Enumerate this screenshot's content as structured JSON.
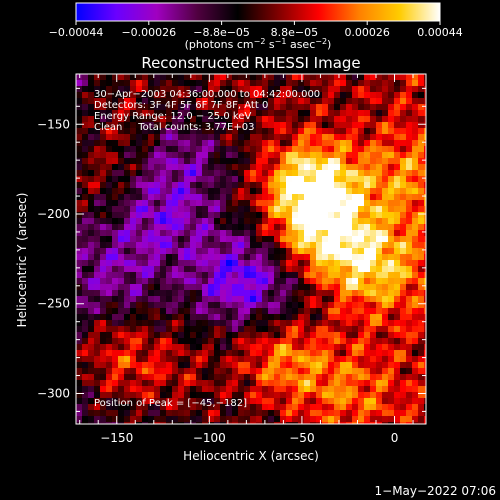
{
  "chart_data": {
    "type": "heatmap",
    "title": "Reconstructed RHESSI Image",
    "xlabel": "Heliocentric X (arcsec)",
    "ylabel": "Heliocentric Y (arcsec)",
    "xlim": [
      -172,
      17
    ],
    "ylim": [
      -317,
      -122
    ],
    "x_ticks": [
      -150,
      -100,
      -50,
      0
    ],
    "x_tick_labels": [
      "−150",
      "−100",
      "−50",
      "0"
    ],
    "y_ticks": [
      -150,
      -200,
      -250,
      -300
    ],
    "y_tick_labels": [
      "−150",
      "−200",
      "−250",
      "−300"
    ],
    "colorbar": {
      "range": [
        -0.00044,
        0.00044
      ],
      "tick_labels": [
        "−0.00044",
        "−0.00026",
        "−8.8e−05",
        "8.8e−05",
        "0.00026",
        "0.00044"
      ],
      "unit_parts": [
        "(photons cm",
        "−2",
        " s",
        "−1",
        " asec",
        "−2",
        ")"
      ],
      "colors": [
        "#0000ff",
        "#6a00ff",
        "#a000c0",
        "#500040",
        "#000000",
        "#800000",
        "#ff0000",
        "#ff8000",
        "#ffcc00",
        "#ffffff"
      ]
    },
    "info_lines": [
      "30−Apr−2003 04:36:00.000 to 04:42:00.000",
      "Detectors: 3F 4F 5F 6F 7F 8F, Att 0",
      "Energy Range: 12.0 − 25.0 keV",
      "Clean     Total counts: 3.77E+03"
    ],
    "peak_label": "Position of Peak = [−45,−182]",
    "peak": [
      -45,
      -182
    ],
    "features": [
      {
        "x": -45,
        "y": -185,
        "value": 0.00044
      },
      {
        "x": -38,
        "y": -215,
        "value": 0.0003
      },
      {
        "x": -10,
        "y": -230,
        "value": 0.00025
      },
      {
        "x": -60,
        "y": -280,
        "value": 0.00024
      },
      {
        "x": 5,
        "y": -180,
        "value": 0.00016
      },
      {
        "x": -150,
        "y": -280,
        "value": 0.00022
      },
      {
        "x": -160,
        "y": -180,
        "value": 0.00014
      },
      {
        "x": -120,
        "y": -290,
        "value": 0.0001
      },
      {
        "x": -145,
        "y": -140,
        "value": 0.00012
      },
      {
        "x": -95,
        "y": -140,
        "value": 9e-05
      },
      {
        "x": -25,
        "y": -300,
        "value": 0.00016
      },
      {
        "x": -85,
        "y": -235,
        "value": -0.00028
      },
      {
        "x": -125,
        "y": -200,
        "value": -0.0002
      },
      {
        "x": -110,
        "y": -165,
        "value": -0.00016
      },
      {
        "x": -60,
        "y": -245,
        "value": -0.00014
      },
      {
        "x": -150,
        "y": -235,
        "value": -0.00012
      }
    ]
  },
  "footer": {
    "timestamp": "1−May−2022 07:06"
  }
}
